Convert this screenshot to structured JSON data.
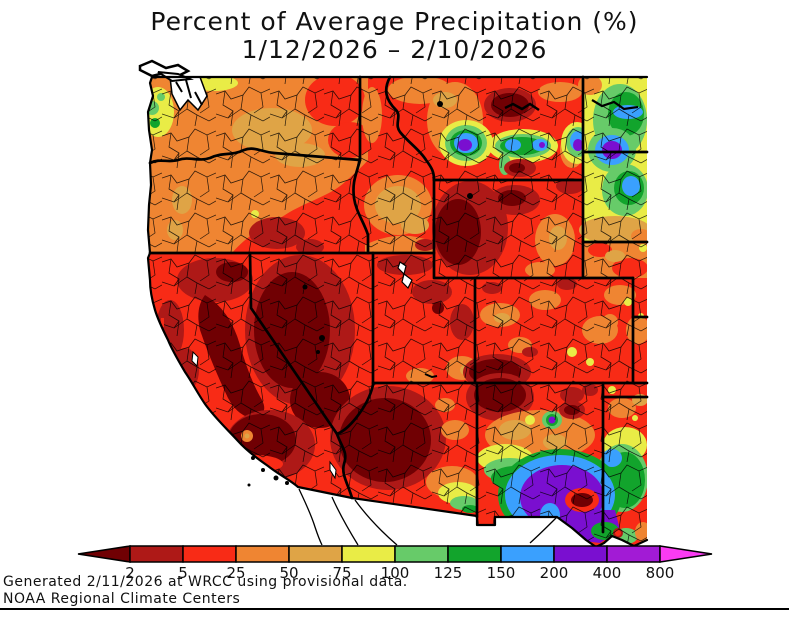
{
  "title": {
    "line1": "Percent of Average Precipitation (%)",
    "line2": "1/12/2026 – 2/10/2026"
  },
  "footer": {
    "line1": "Generated 2/11/2026 at WRCC using provisional data.",
    "line2": "NOAA Regional Climate Centers"
  },
  "legend": {
    "tick_labels": [
      "2",
      "5",
      "25",
      "50",
      "75",
      "100",
      "125",
      "150",
      "200",
      "400",
      "800"
    ],
    "segment_colors": [
      "#AE1917",
      "#F82B16",
      "#EF8532",
      "#DFA446",
      "#E9EC46",
      "#67CB69",
      "#12A42C",
      "#3AA0FE",
      "#7A0FD0",
      "#A21BD5"
    ],
    "below_min_color": "#700003",
    "above_max_color": "#FB3BF3",
    "units": "%"
  }
}
